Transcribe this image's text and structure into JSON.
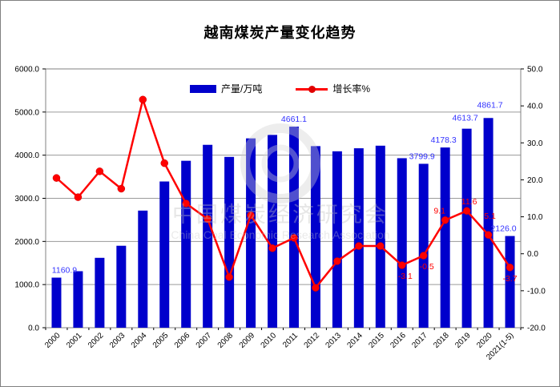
{
  "frame": {
    "border_color": "#808080",
    "background": "#ffffff"
  },
  "chart_data": {
    "type": "bar",
    "title": "越南煤炭产量变化趋势",
    "categories": [
      "2000",
      "2001",
      "2002",
      "2003",
      "2004",
      "2005",
      "2006",
      "2007",
      "2008",
      "2009",
      "2010",
      "2011",
      "2012",
      "2013",
      "2014",
      "2015",
      "2016",
      "2017",
      "2018",
      "2019",
      "2020",
      "2021(1-5)"
    ],
    "series": [
      {
        "name": "产量/万吨",
        "type": "bar",
        "axis": "left",
        "color": "#0000cc",
        "label_color": "#3333ff",
        "values": [
          1160.9,
          1310,
          1620,
          1900,
          2715,
          3390,
          3870,
          4240,
          3960,
          4390,
          4470,
          4661.1,
          4210,
          4090,
          4160,
          4220,
          3930,
          3799.9,
          4178.3,
          4613.7,
          4861.7,
          2126.0
        ],
        "point_labels": [
          {
            "i": 0,
            "text": "1160.9",
            "dx": 10
          },
          {
            "i": 11,
            "text": "4661.1",
            "dx": 0
          },
          {
            "i": 17,
            "text": "3799.9",
            "dx": -2
          },
          {
            "i": 18,
            "text": "4178.3",
            "dx": -2
          },
          {
            "i": 19,
            "text": "4613.7",
            "dx": -2,
            "dy": -4
          },
          {
            "i": 20,
            "text": "4861.7",
            "dx": 2,
            "dy": -7
          },
          {
            "i": 21,
            "text": "2126.0",
            "dx": -8
          }
        ]
      },
      {
        "name": "增长率%",
        "type": "line",
        "axis": "right",
        "color": "#ff0000",
        "label_color": "#ff0000",
        "values": [
          20.5,
          15.3,
          22.3,
          17.6,
          41.7,
          24.5,
          13.6,
          9.4,
          -6.3,
          10.4,
          1.5,
          4.3,
          -9.2,
          -2.0,
          2.1,
          2.1,
          -3.1,
          -0.5,
          9.1,
          11.6,
          5.1,
          -3.7
        ],
        "point_labels": [
          {
            "i": 16,
            "text": "-3.1",
            "pos": "below",
            "dx": 4
          },
          {
            "i": 17,
            "text": "-0.5",
            "pos": "below",
            "dx": 4
          },
          {
            "i": 18,
            "text": "9.1",
            "pos": "above",
            "dx": -7
          },
          {
            "i": 19,
            "text": "11.6",
            "pos": "above",
            "dx": 3
          },
          {
            "i": 20,
            "text": "5.1",
            "pos": "above",
            "dx": 2,
            "dy": -12
          },
          {
            "i": 21,
            "text": "-3.7",
            "pos": "below",
            "dx": 0
          }
        ]
      }
    ],
    "left_axis": {
      "min": 0,
      "max": 6000,
      "step": 1000,
      "tick_labels": [
        "0.0",
        "1000.0",
        "2000.0",
        "3000.0",
        "4000.0",
        "5000.0",
        "6000.0"
      ]
    },
    "right_axis": {
      "min": -20,
      "max": 50,
      "step": 10,
      "tick_labels": [
        "-20.0",
        "-10.0",
        "0.0",
        "10.0",
        "20.0",
        "30.0",
        "40.0",
        "50.0"
      ]
    },
    "grid_color": "#9a9a9a",
    "axis_color": "#808080",
    "legend_position": "top-inside",
    "watermark": {
      "line1": "中国煤炭经济研究会",
      "line2": "China Coal Economic Research Association"
    }
  }
}
